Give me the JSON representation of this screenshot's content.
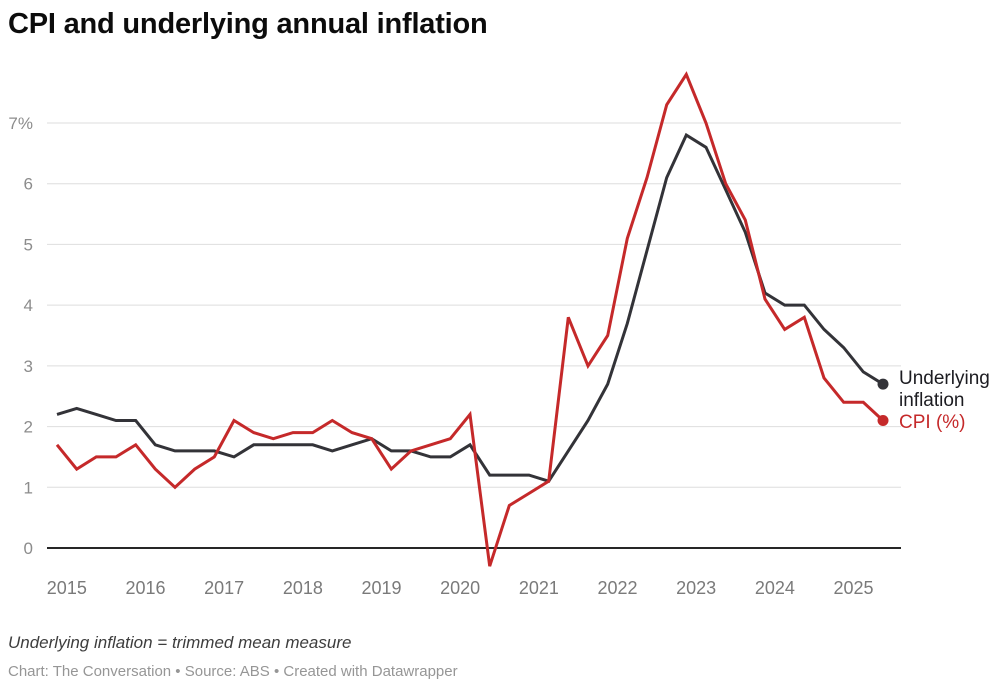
{
  "title": "CPI and underlying annual inflation",
  "legend": {
    "underlying_label": "Underlying inflation",
    "cpi_label": "CPI (%)"
  },
  "notes": {
    "footnote": "Underlying inflation = trimmed mean measure",
    "credit": "Chart: The Conversation • Source: ABS • Created with Datawrapper"
  },
  "colors": {
    "underlying": "#333338",
    "cpi": "#c5292a",
    "gridline": "#dedede",
    "zero_axis": "#262626",
    "ytick_text": "#8c8c8c",
    "xtick_text": "#7a7a7a"
  },
  "chart_data": {
    "type": "line",
    "title": "CPI and underlying annual inflation",
    "xlabel": "",
    "ylabel": "",
    "x_unit": "quarter",
    "grid": true,
    "legend_position": "right of line ends",
    "ylim": [
      -0.5,
      7.9
    ],
    "yticks": [
      0,
      1,
      2,
      3,
      4,
      5,
      6,
      7
    ],
    "ytick_top_label": "7%",
    "xticks": [
      2015,
      2016,
      2017,
      2018,
      2019,
      2020,
      2021,
      2022,
      2023,
      2024,
      2025
    ],
    "quarters": [
      "2014-Q4",
      "2015-Q1",
      "2015-Q2",
      "2015-Q3",
      "2015-Q4",
      "2016-Q1",
      "2016-Q2",
      "2016-Q3",
      "2016-Q4",
      "2017-Q1",
      "2017-Q2",
      "2017-Q3",
      "2017-Q4",
      "2018-Q1",
      "2018-Q2",
      "2018-Q3",
      "2018-Q4",
      "2019-Q1",
      "2019-Q2",
      "2019-Q3",
      "2019-Q4",
      "2020-Q1",
      "2020-Q2",
      "2020-Q3",
      "2020-Q4",
      "2021-Q1",
      "2021-Q2",
      "2021-Q3",
      "2021-Q4",
      "2022-Q1",
      "2022-Q2",
      "2022-Q3",
      "2022-Q4",
      "2023-Q1",
      "2023-Q2",
      "2023-Q3",
      "2023-Q4",
      "2024-Q1",
      "2024-Q2",
      "2024-Q3",
      "2024-Q4",
      "2025-Q1",
      "2025-Q2"
    ],
    "series": [
      {
        "name": "Underlying inflation",
        "color": "#333338",
        "values": [
          2.2,
          2.3,
          2.2,
          2.1,
          2.1,
          1.7,
          1.6,
          1.6,
          1.6,
          1.5,
          1.7,
          1.7,
          1.7,
          1.7,
          1.6,
          1.7,
          1.8,
          1.6,
          1.6,
          1.5,
          1.5,
          1.7,
          1.2,
          1.2,
          1.2,
          1.1,
          1.6,
          2.1,
          2.7,
          3.7,
          4.9,
          6.1,
          6.8,
          6.6,
          5.9,
          5.2,
          4.2,
          4.0,
          4.0,
          3.6,
          3.3,
          2.9,
          2.7
        ]
      },
      {
        "name": "CPI (%)",
        "color": "#c5292a",
        "values": [
          1.7,
          1.3,
          1.5,
          1.5,
          1.7,
          1.3,
          1.0,
          1.3,
          1.5,
          2.1,
          1.9,
          1.8,
          1.9,
          1.9,
          2.1,
          1.9,
          1.8,
          1.3,
          1.6,
          1.7,
          1.8,
          2.2,
          -0.3,
          0.7,
          0.9,
          1.1,
          3.8,
          3.0,
          3.5,
          5.1,
          6.1,
          7.3,
          7.8,
          7.0,
          6.0,
          5.4,
          4.1,
          3.6,
          3.8,
          2.8,
          2.4,
          2.4,
          2.1
        ]
      }
    ]
  }
}
